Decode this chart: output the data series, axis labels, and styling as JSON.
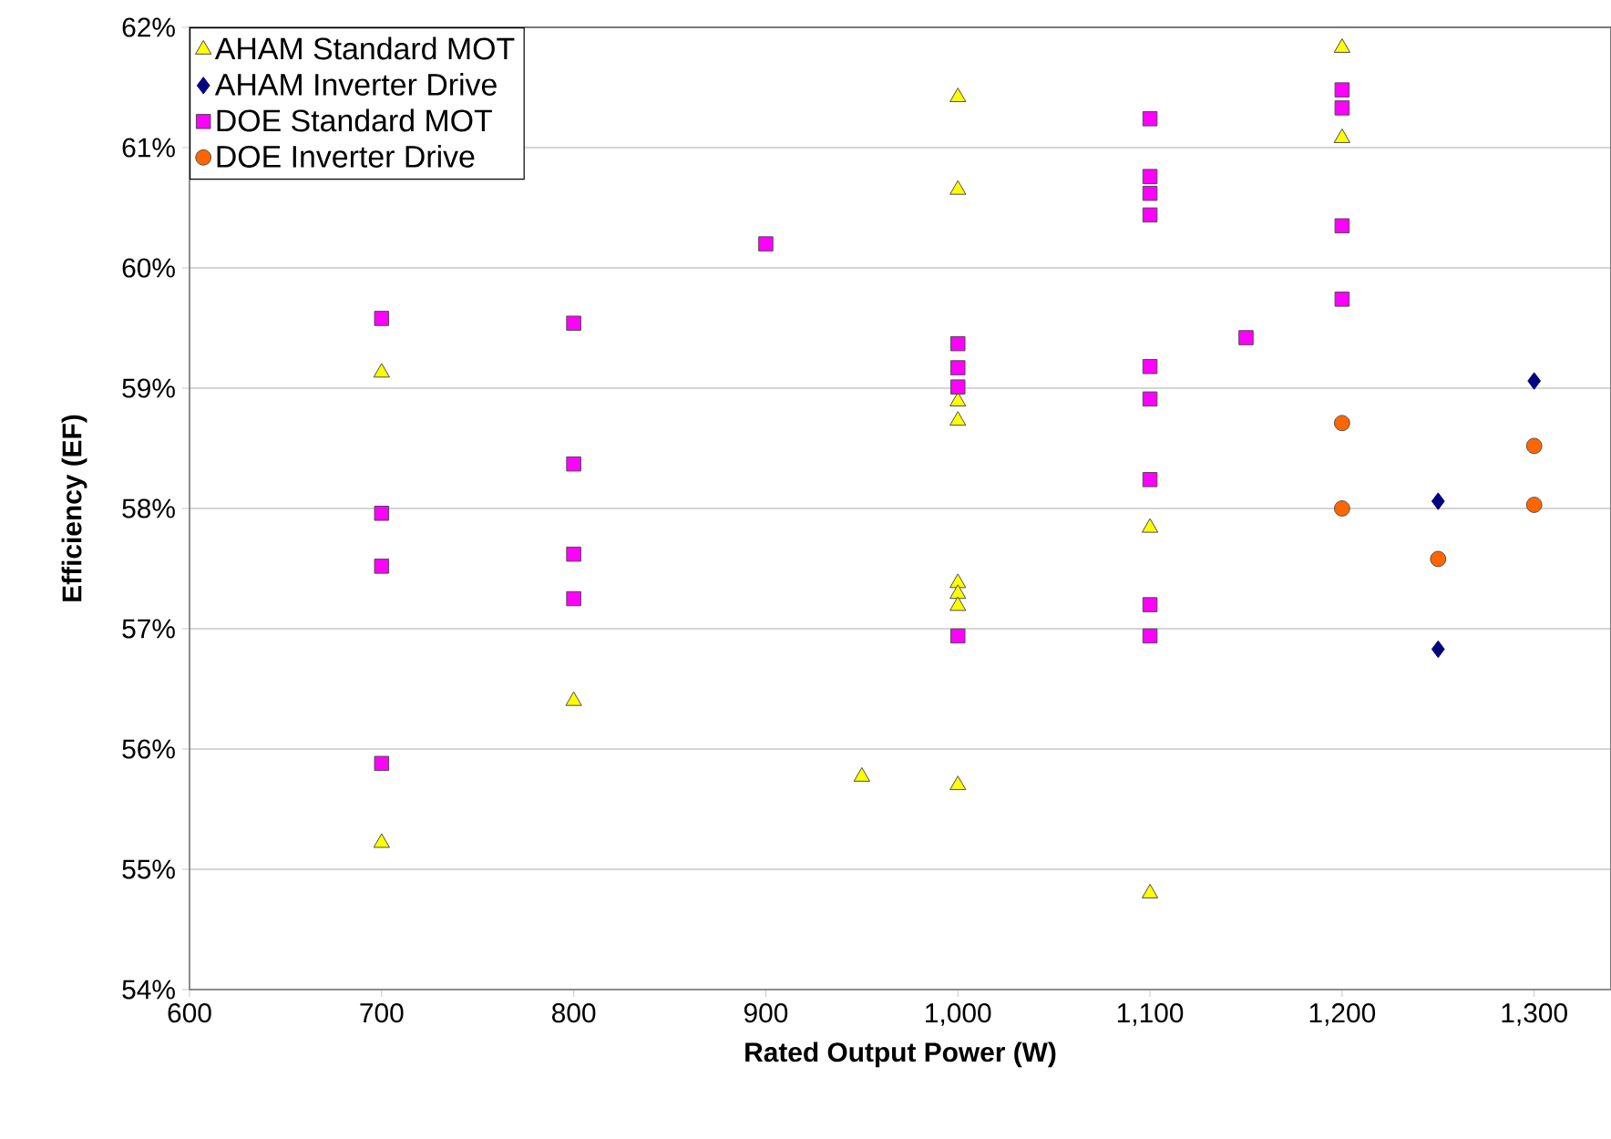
{
  "chart_data": {
    "type": "scatter",
    "xlabel": "Rated Output Power (W)",
    "ylabel": "Efficiency (EF)",
    "xlim": [
      600,
      1340
    ],
    "ylim": [
      54,
      62
    ],
    "xticks": [
      600,
      700,
      800,
      900,
      {
        "value": 1000,
        "label": "1,000"
      },
      {
        "value": 1100,
        "label": "1,100"
      },
      {
        "value": 1200,
        "label": "1,200"
      },
      {
        "value": 1300,
        "label": "1,300"
      }
    ],
    "yticks": [
      {
        "value": 54,
        "label": "54%"
      },
      {
        "value": 55,
        "label": "55%"
      },
      {
        "value": 56,
        "label": "56%"
      },
      {
        "value": 57,
        "label": "57%"
      },
      {
        "value": 58,
        "label": "58%"
      },
      {
        "value": 59,
        "label": "59%"
      },
      {
        "value": 60,
        "label": "60%"
      },
      {
        "value": 61,
        "label": "61%"
      },
      {
        "value": 62,
        "label": "62%"
      }
    ],
    "grid": "y",
    "legend": "top left",
    "series": [
      {
        "name": "AHAM Standard MOT",
        "color": "#ffff00",
        "marker": "triangle",
        "x": [
          700,
          700,
          800,
          950,
          1000,
          1000,
          1000,
          1000,
          1000,
          1000,
          1000,
          1000,
          1100,
          1100,
          1200,
          1200
        ],
        "values": [
          59.13,
          55.22,
          56.4,
          55.77,
          61.42,
          60.65,
          58.89,
          58.73,
          57.38,
          57.29,
          57.19,
          55.7,
          57.84,
          54.8,
          61.83,
          61.08
        ]
      },
      {
        "name": "AHAM Inverter Drive",
        "color": "#000080",
        "marker": "diamond",
        "x": [
          1250,
          1250,
          1300
        ],
        "values": [
          58.06,
          56.83,
          59.06
        ]
      },
      {
        "name": "DOE Standard MOT",
        "color": "#ff00ff",
        "marker": "square",
        "x": [
          700,
          700,
          700,
          700,
          800,
          800,
          800,
          800,
          900,
          1000,
          1000,
          1000,
          1000,
          1100,
          1100,
          1100,
          1100,
          1100,
          1100,
          1100,
          1100,
          1100,
          1150,
          1200,
          1200,
          1200,
          1200
        ],
        "values": [
          59.58,
          57.96,
          57.52,
          55.88,
          59.54,
          58.37,
          57.62,
          57.25,
          60.2,
          59.37,
          59.17,
          59.01,
          56.94,
          61.24,
          60.76,
          60.62,
          60.44,
          59.18,
          58.91,
          58.24,
          57.2,
          56.94,
          59.42,
          61.48,
          61.33,
          60.35,
          59.74
        ]
      },
      {
        "name": "DOE Inverter Drive",
        "color": "#ff6600",
        "marker": "circle",
        "x": [
          1200,
          1200,
          1250,
          1300,
          1300
        ],
        "values": [
          58.71,
          58.0,
          57.58,
          58.52,
          58.03
        ]
      }
    ]
  }
}
